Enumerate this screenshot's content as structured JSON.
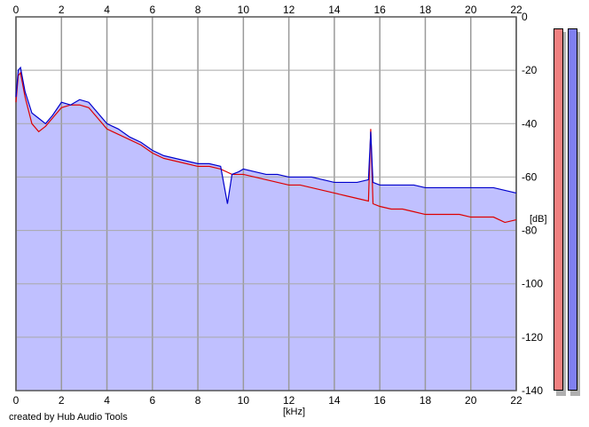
{
  "app": {
    "credit": "created by Hub Audio Tools"
  },
  "chart_data": {
    "type": "area",
    "x_unit_label": "[kHz]",
    "y_unit_label": "[dB]",
    "xlim": [
      0,
      22
    ],
    "ylim": [
      -140,
      0
    ],
    "x_ticks": [
      0,
      2,
      4,
      6,
      8,
      10,
      12,
      14,
      16,
      18,
      20,
      22
    ],
    "y_ticks": [
      0,
      -20,
      -40,
      -60,
      -80,
      -100,
      -120,
      -140
    ],
    "grid": true,
    "x_tick_labels_top_and_bottom": true,
    "y_tick_labels_side": "right",
    "fill_color": "#c0c0ff",
    "series": [
      {
        "color": "#0000cc",
        "x": [
          0,
          0.1,
          0.2,
          0.4,
          0.7,
          1.0,
          1.3,
          1.6,
          2.0,
          2.4,
          2.8,
          3.2,
          3.6,
          4.0,
          4.5,
          5.0,
          5.5,
          6.0,
          6.5,
          7.0,
          7.5,
          8.0,
          8.5,
          9.0,
          9.3,
          9.5,
          9.8,
          10.0,
          10.5,
          11.0,
          11.5,
          12.0,
          12.5,
          13.0,
          13.5,
          14.0,
          14.5,
          15.0,
          15.5,
          15.6,
          15.7,
          16.0,
          16.5,
          17.0,
          17.5,
          18.0,
          18.5,
          19.0,
          19.5,
          20.0,
          20.5,
          21.0,
          21.5,
          22.0
        ],
        "values": [
          -30,
          -20,
          -19,
          -28,
          -36,
          -38,
          -40,
          -37,
          -32,
          -33,
          -31,
          -32,
          -36,
          -40,
          -42,
          -45,
          -47,
          -50,
          -52,
          -53,
          -54,
          -55,
          -55,
          -56,
          -70,
          -59,
          -58,
          -57,
          -58,
          -59,
          -59,
          -60,
          -60,
          -60,
          -61,
          -62,
          -62,
          -62,
          -61,
          -43,
          -62,
          -63,
          -63,
          -63,
          -63,
          -64,
          -64,
          -64,
          -64,
          -64,
          -64,
          -64,
          -65,
          -66
        ]
      },
      {
        "color": "#dd0000",
        "x": [
          0,
          0.1,
          0.2,
          0.4,
          0.7,
          1.0,
          1.3,
          1.6,
          2.0,
          2.4,
          2.8,
          3.2,
          3.6,
          4.0,
          4.5,
          5.0,
          5.5,
          6.0,
          6.5,
          7.0,
          7.5,
          8.0,
          8.5,
          9.0,
          9.5,
          10.0,
          10.5,
          11.0,
          11.5,
          12.0,
          12.5,
          13.0,
          13.5,
          14.0,
          14.5,
          15.0,
          15.5,
          15.6,
          15.7,
          16.0,
          16.5,
          17.0,
          17.5,
          18.0,
          18.5,
          19.0,
          19.5,
          20.0,
          20.5,
          21.0,
          21.5,
          22.0
        ],
        "values": [
          -32,
          -22,
          -21,
          -30,
          -40,
          -43,
          -41,
          -38,
          -34,
          -33,
          -33,
          -34,
          -38,
          -42,
          -44,
          -46,
          -48,
          -51,
          -53,
          -54,
          -55,
          -56,
          -56,
          -57,
          -59,
          -59,
          -60,
          -61,
          -62,
          -63,
          -63,
          -64,
          -65,
          -66,
          -67,
          -68,
          -69,
          -42,
          -70,
          -71,
          -72,
          -72,
          -73,
          -74,
          -74,
          -74,
          -74,
          -75,
          -75,
          -75,
          -77,
          -76
        ]
      }
    ]
  },
  "meters": {
    "left_color": "#f08080",
    "right_color": "#8080f0"
  }
}
